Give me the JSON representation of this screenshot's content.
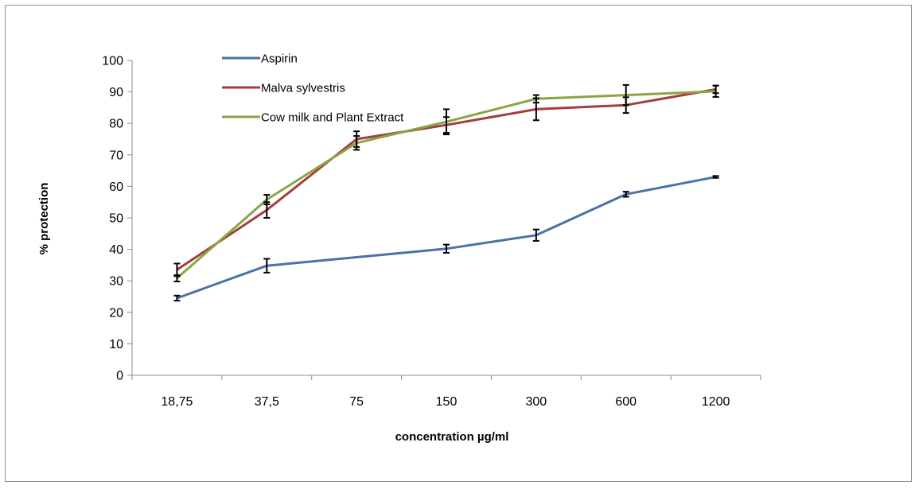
{
  "chart_data": {
    "type": "line",
    "categories": [
      "18,75",
      "37,5",
      "75",
      "150",
      "300",
      "600",
      "1200"
    ],
    "xlabel": "concentration  µg/ml",
    "ylabel": "% protection",
    "ylim": [
      0,
      100
    ],
    "y_ticks": [
      0,
      10,
      20,
      30,
      40,
      50,
      60,
      70,
      80,
      90,
      100
    ],
    "grid": false,
    "legend_position": "top-left",
    "series": [
      {
        "name": "Aspirin",
        "color": "#4a72a8",
        "values": [
          24.5,
          34.8,
          37.5,
          40.2,
          44.5,
          57.5,
          63
        ],
        "errors": [
          0.8,
          2.2,
          null,
          1.3,
          1.8,
          0.8,
          0.3
        ]
      },
      {
        "name": "Malva sylvestris",
        "color": "#a23e3e",
        "values": [
          33.5,
          52.5,
          75,
          79.5,
          84.5,
          85.8,
          90.8
        ],
        "errors": [
          2,
          2.5,
          2.5,
          2.5,
          3.5,
          2.5,
          1.2
        ]
      },
      {
        "name": "Cow milk and Plant Extract",
        "color": "#8ba443",
        "values": [
          30.8,
          55.8,
          73.8,
          80.5,
          87.8,
          89,
          90.2
        ],
        "errors": [
          1,
          1.5,
          2.2,
          4,
          1.2,
          3.2,
          1.8
        ]
      }
    ]
  }
}
